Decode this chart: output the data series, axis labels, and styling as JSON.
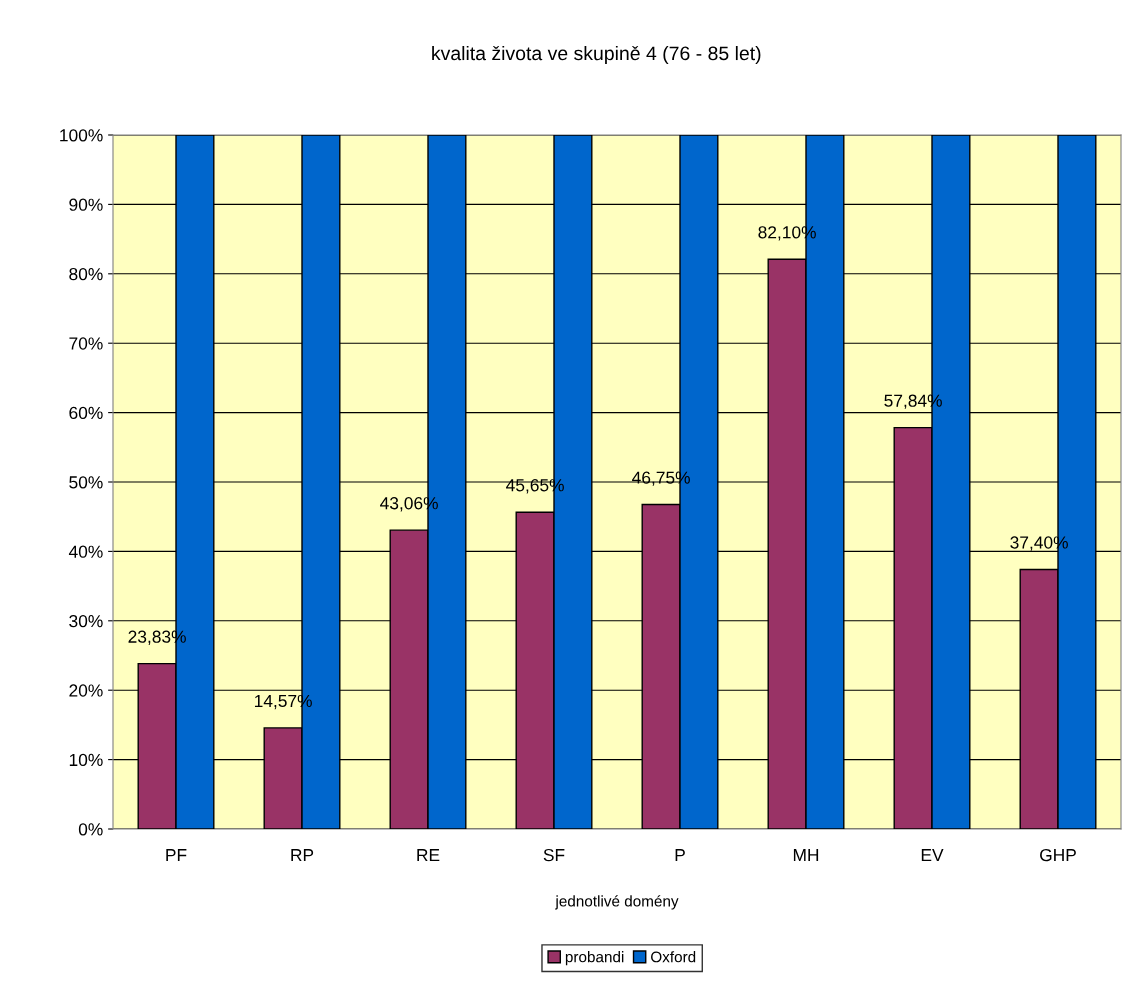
{
  "chart_data": {
    "type": "bar",
    "title": "kvalita života ve skupině 4 (76 - 85 let)",
    "xlabel": "jednotlivé domény",
    "categories": [
      "PF",
      "RP",
      "RE",
      "SF",
      "P",
      "MH",
      "EV",
      "GHP"
    ],
    "series": [
      {
        "name": "probandi",
        "color": "#993366",
        "values": [
          23.83,
          14.57,
          43.06,
          45.65,
          46.75,
          82.1,
          57.84,
          37.4
        ],
        "value_labels": [
          "23,83%",
          "14,57%",
          "43,06%",
          "45,65%",
          "46,75%",
          "82,10%",
          "57,84%",
          "37,40%"
        ]
      },
      {
        "name": "Oxford",
        "color": "#0066cc",
        "values": [
          100,
          100,
          100,
          100,
          100,
          100,
          100,
          100
        ]
      }
    ],
    "ylim": [
      0,
      100
    ],
    "yticks": [
      {
        "value": 0,
        "label": "0%"
      },
      {
        "value": 10,
        "label": "10%"
      },
      {
        "value": 20,
        "label": "20%"
      },
      {
        "value": 30,
        "label": "30%"
      },
      {
        "value": 40,
        "label": "40%"
      },
      {
        "value": 50,
        "label": "50%"
      },
      {
        "value": 60,
        "label": "60%"
      },
      {
        "value": 70,
        "label": "70%"
      },
      {
        "value": 80,
        "label": "80%"
      },
      {
        "value": 90,
        "label": "90%"
      },
      {
        "value": 100,
        "label": "100%"
      }
    ],
    "grid": "y",
    "legend": "bottom"
  }
}
